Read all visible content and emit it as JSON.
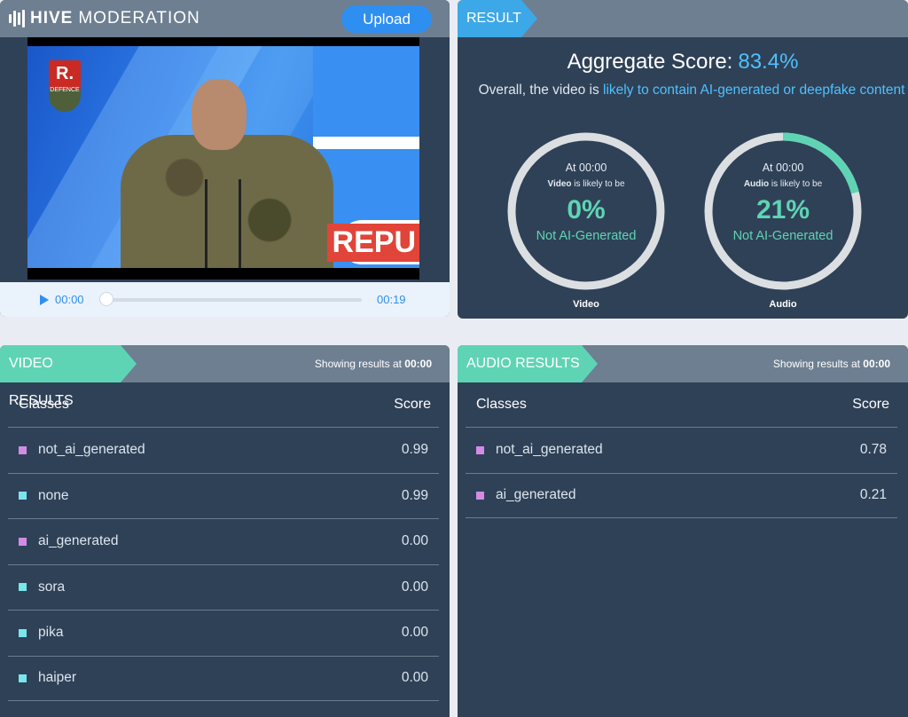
{
  "colors": {
    "panel_bg": "#2f4157",
    "header_bg": "#6d7f91",
    "accent_blue": "#3da8e8",
    "accent_green": "#5fd4b5",
    "score_blue": "#4fc1ff",
    "swatch_purple": "#d48be6",
    "swatch_cyan": "#7ae5ec"
  },
  "header": {
    "logo_bold": "HIVE",
    "logo_rest": "MODERATION",
    "upload_label": "Upload"
  },
  "player": {
    "current_time": "00:00",
    "duration": "00:19",
    "video_overlay_text": "REPU",
    "logo_badge": "R.",
    "logo_badge_sub": "DEFENCE"
  },
  "result": {
    "tag": "RESULT",
    "aggregate_label": "Aggregate Score:",
    "aggregate_score": "83.4%",
    "desc_prefix": "Overall, the video is ",
    "desc_highlight": "likely to contain AI-generated or deepfake content",
    "video_gauge": {
      "at": "At 00:00",
      "subject": "Video",
      "likely_text": " is likely to be",
      "percent": "0%",
      "percent_value": 0,
      "label": "Not AI-Generated",
      "caption": "Video"
    },
    "audio_gauge": {
      "at": "At 00:00",
      "subject": "Audio",
      "likely_text": " is likely to be",
      "percent": "21%",
      "percent_value": 21,
      "label": "Not AI-Generated",
      "caption": "Audio"
    }
  },
  "video_results": {
    "tag": "VIDEO RESULTS",
    "showing_prefix": "Showing results at ",
    "showing_time": "00:00",
    "col_classes": "Classes",
    "col_score": "Score",
    "rows": [
      {
        "name": "not_ai_generated",
        "score": "0.99",
        "swatch": "purple"
      },
      {
        "name": "none",
        "score": "0.99",
        "swatch": "cyan"
      },
      {
        "name": "ai_generated",
        "score": "0.00",
        "swatch": "purple"
      },
      {
        "name": "sora",
        "score": "0.00",
        "swatch": "cyan"
      },
      {
        "name": "pika",
        "score": "0.00",
        "swatch": "cyan"
      },
      {
        "name": "haiper",
        "score": "0.00",
        "swatch": "cyan"
      }
    ]
  },
  "audio_results": {
    "tag": "AUDIO RESULTS",
    "showing_prefix": "Showing results at ",
    "showing_time": "00:00",
    "col_classes": "Classes",
    "col_score": "Score",
    "rows": [
      {
        "name": "not_ai_generated",
        "score": "0.78",
        "swatch": "purple"
      },
      {
        "name": "ai_generated",
        "score": "0.21",
        "swatch": "purple"
      }
    ]
  }
}
